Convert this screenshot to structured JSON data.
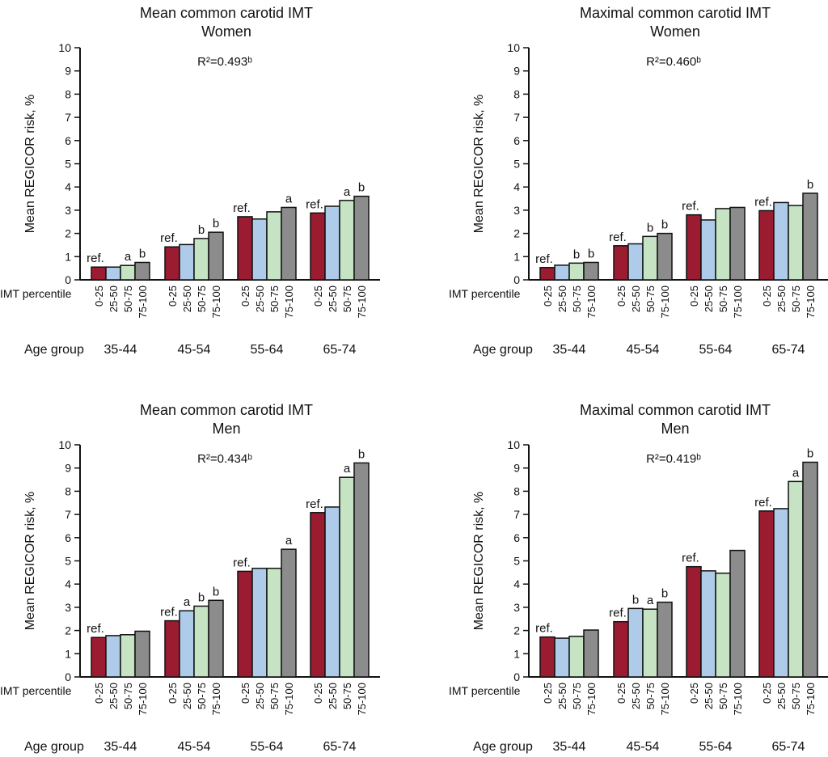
{
  "chart_data": [
    {
      "type": "bar",
      "title": [
        "Mean common carotid IMT",
        "Women"
      ],
      "annotation": "R²=0.493ᵇ",
      "ylabel": "Mean REGICOR risk, %",
      "ylim": [
        0,
        10
      ],
      "yticks": [
        "0",
        "1",
        "2",
        "3",
        "4",
        "5",
        "6",
        "7",
        "8",
        "9",
        "10"
      ],
      "x_row_labels": {
        "percentile": "IMT percentile",
        "age": "Age group"
      },
      "groups": [
        "35-44",
        "45-54",
        "55-64",
        "65-74"
      ],
      "series_categories": [
        "0-25",
        "25-50",
        "50-75",
        "75-100"
      ],
      "values": [
        [
          0.55,
          0.55,
          0.62,
          0.75
        ],
        [
          1.42,
          1.52,
          1.78,
          2.05
        ],
        [
          2.72,
          2.62,
          2.93,
          3.12
        ],
        [
          2.88,
          3.17,
          3.42,
          3.6
        ]
      ],
      "bar_labels": [
        [
          "ref.",
          "",
          "a",
          "b"
        ],
        [
          "ref.",
          "",
          "b",
          "b"
        ],
        [
          "ref.",
          "",
          "",
          "a"
        ],
        [
          "ref.",
          "",
          "a",
          "b"
        ]
      ]
    },
    {
      "type": "bar",
      "title": [
        "Maximal common carotid IMT",
        "Women"
      ],
      "annotation": "R²=0.460ᵇ",
      "ylabel": "Mean REGICOR risk, %",
      "ylim": [
        0,
        10
      ],
      "yticks": [
        "0",
        "1",
        "2",
        "3",
        "4",
        "5",
        "6",
        "7",
        "8",
        "9",
        "10"
      ],
      "x_row_labels": {
        "percentile": "IMT percentile",
        "age": "Age group"
      },
      "groups": [
        "35-44",
        "45-54",
        "55-64",
        "65-74"
      ],
      "series_categories": [
        "0-25",
        "25-50",
        "50-75",
        "75-100"
      ],
      "values": [
        [
          0.53,
          0.63,
          0.72,
          0.75
        ],
        [
          1.47,
          1.55,
          1.87,
          2.0
        ],
        [
          2.8,
          2.58,
          3.07,
          3.12
        ],
        [
          2.98,
          3.33,
          3.2,
          3.73
        ]
      ],
      "bar_labels": [
        [
          "ref.",
          "",
          "b",
          "b"
        ],
        [
          "ref.",
          "",
          "b",
          "b"
        ],
        [
          "ref.",
          "",
          "",
          ""
        ],
        [
          "ref.",
          "",
          "",
          "b"
        ]
      ]
    },
    {
      "type": "bar",
      "title": [
        "Mean common carotid IMT",
        "Men"
      ],
      "annotation": "R²=0.434ᵇ",
      "ylabel": "Mean REGICOR risk, %",
      "ylim": [
        0,
        10
      ],
      "yticks": [
        "0",
        "1",
        "2",
        "3",
        "4",
        "5",
        "6",
        "7",
        "8",
        "9",
        "10"
      ],
      "x_row_labels": {
        "percentile": "IMT percentile",
        "age": "Age group"
      },
      "groups": [
        "35-44",
        "45-54",
        "55-64",
        "65-74"
      ],
      "series_categories": [
        "0-25",
        "25-50",
        "50-75",
        "75-100"
      ],
      "values": [
        [
          1.7,
          1.78,
          1.82,
          1.97
        ],
        [
          2.42,
          2.85,
          3.05,
          3.3
        ],
        [
          4.55,
          4.68,
          4.68,
          5.5
        ],
        [
          7.08,
          7.32,
          8.6,
          9.22
        ]
      ],
      "bar_labels": [
        [
          "ref.",
          "",
          "",
          ""
        ],
        [
          "ref.",
          "a",
          "b",
          "b"
        ],
        [
          "ref.",
          "",
          "",
          "a"
        ],
        [
          "ref.",
          "",
          "a",
          "b"
        ]
      ]
    },
    {
      "type": "bar",
      "title": [
        "Maximal common carotid IMT",
        "Men"
      ],
      "annotation": "R²=0.419ᵇ",
      "ylabel": "Mean REGICOR risk, %",
      "ylim": [
        0,
        10
      ],
      "yticks": [
        "0",
        "1",
        "2",
        "3",
        "4",
        "5",
        "6",
        "7",
        "8",
        "9",
        "10"
      ],
      "x_row_labels": {
        "percentile": "IMT percentile",
        "age": "Age group"
      },
      "groups": [
        "35-44",
        "45-54",
        "55-64",
        "65-74"
      ],
      "series_categories": [
        "0-25",
        "25-50",
        "50-75",
        "75-100"
      ],
      "values": [
        [
          1.72,
          1.67,
          1.75,
          2.02
        ],
        [
          2.38,
          2.95,
          2.92,
          3.22
        ],
        [
          4.75,
          4.57,
          4.47,
          5.45
        ],
        [
          7.15,
          7.25,
          8.42,
          9.25
        ]
      ],
      "bar_labels": [
        [
          "ref.",
          "",
          "",
          ""
        ],
        [
          "ref.",
          "b",
          "a",
          "b"
        ],
        [
          "ref.",
          "",
          "",
          ""
        ],
        [
          "ref.",
          "",
          "a",
          "b"
        ]
      ]
    }
  ],
  "colors": {
    "0-25": "#9b1c31",
    "25-50": "#aecbea",
    "50-75": "#c6e3c3",
    "75-100": "#8c8c8c"
  }
}
